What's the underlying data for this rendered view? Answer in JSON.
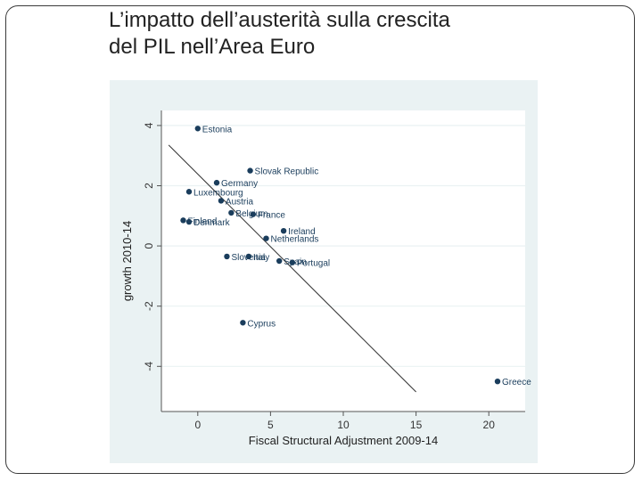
{
  "slide": {
    "title_line1": "L’impatto dell’austerità sulla crescita",
    "title_line2": "del PIL nell’Area Euro"
  },
  "chart_data": {
    "type": "scatter",
    "title": "",
    "xlabel": "Fiscal Structural Adjustment 2009-14",
    "ylabel": "growth 2010-14",
    "xlim": [
      -2.5,
      22.5
    ],
    "ylim": [
      -5.5,
      4.5
    ],
    "xticks": [
      0,
      5,
      10,
      15,
      20
    ],
    "yticks": [
      -4,
      -2,
      0,
      2,
      4
    ],
    "grid": true,
    "legend": "none",
    "colors": {
      "plot_bg": "#eaf2f3",
      "point": "#1a3d5c",
      "line": "#333333",
      "label": "#1a3d5c",
      "axis": "#555555"
    },
    "points": [
      {
        "label": "Estonia",
        "x": 0.0,
        "y": 3.9
      },
      {
        "label": "Slovak Republic",
        "x": 3.6,
        "y": 2.5
      },
      {
        "label": "Germany",
        "x": 1.3,
        "y": 2.1
      },
      {
        "label": "Luxembourg",
        "x": -0.6,
        "y": 1.8
      },
      {
        "label": "Austria",
        "x": 1.6,
        "y": 1.5
      },
      {
        "label": "Belgium",
        "x": 2.3,
        "y": 1.1
      },
      {
        "label": "France",
        "x": 3.8,
        "y": 1.05
      },
      {
        "label": "Finland",
        "x": -1.0,
        "y": 0.85
      },
      {
        "label": "Denmark",
        "x": -0.6,
        "y": 0.8
      },
      {
        "label": "Ireland",
        "x": 5.9,
        "y": 0.5
      },
      {
        "label": "Netherlands",
        "x": 4.7,
        "y": 0.25
      },
      {
        "label": "Slovenia",
        "x": 2.0,
        "y": -0.35
      },
      {
        "label": "Italy",
        "x": 3.5,
        "y": -0.35
      },
      {
        "label": "Spain",
        "x": 5.6,
        "y": -0.5
      },
      {
        "label": "Portugal",
        "x": 6.5,
        "y": -0.55
      },
      {
        "label": "Cyprus",
        "x": 3.1,
        "y": -2.55
      },
      {
        "label": "Greece",
        "x": 20.6,
        "y": -4.5
      }
    ],
    "fit_line": {
      "x": [
        -2.0,
        15.0
      ],
      "y": [
        3.35,
        -4.85
      ]
    }
  }
}
